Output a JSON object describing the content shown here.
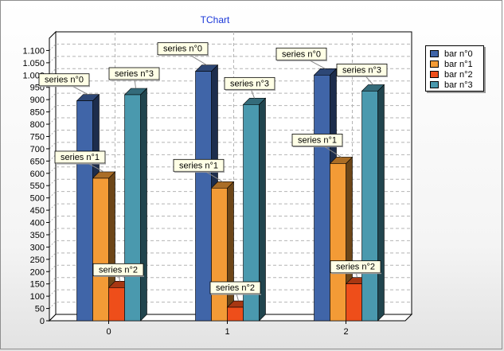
{
  "chart_data": {
    "type": "bar",
    "title": "TChart",
    "categories": [
      "0",
      "1",
      "2"
    ],
    "series": [
      {
        "name": "bar n°0",
        "values": [
          895,
          1015,
          1000
        ],
        "color": "#4065a8",
        "label": "series n°0"
      },
      {
        "name": "bar n°1",
        "values": [
          580,
          540,
          640
        ],
        "color": "#f39b36",
        "label": "series n°1"
      },
      {
        "name": "bar n°2",
        "values": [
          135,
          55,
          150
        ],
        "color": "#ee4e1a",
        "label": "series n°2"
      },
      {
        "name": "bar n°3",
        "values": [
          920,
          880,
          935
        ],
        "color": "#4a99ae",
        "label": "series n°3"
      }
    ],
    "ylim": [
      0,
      1150
    ],
    "yticks": [
      0,
      50,
      100,
      150,
      200,
      250,
      300,
      350,
      400,
      450,
      500,
      550,
      600,
      650,
      700,
      750,
      800,
      850,
      900,
      950,
      1000,
      1050,
      1100
    ],
    "ytick_labels": [
      "0",
      "50",
      "100",
      "150",
      "200",
      "250",
      "300",
      "350",
      "400",
      "450",
      "500",
      "550",
      "600",
      "650",
      "700",
      "750",
      "800",
      "850",
      "900",
      "950",
      "1.000",
      "1.050",
      "1.100"
    ],
    "grid": true,
    "legend_position": "top-right",
    "view": "3d"
  }
}
